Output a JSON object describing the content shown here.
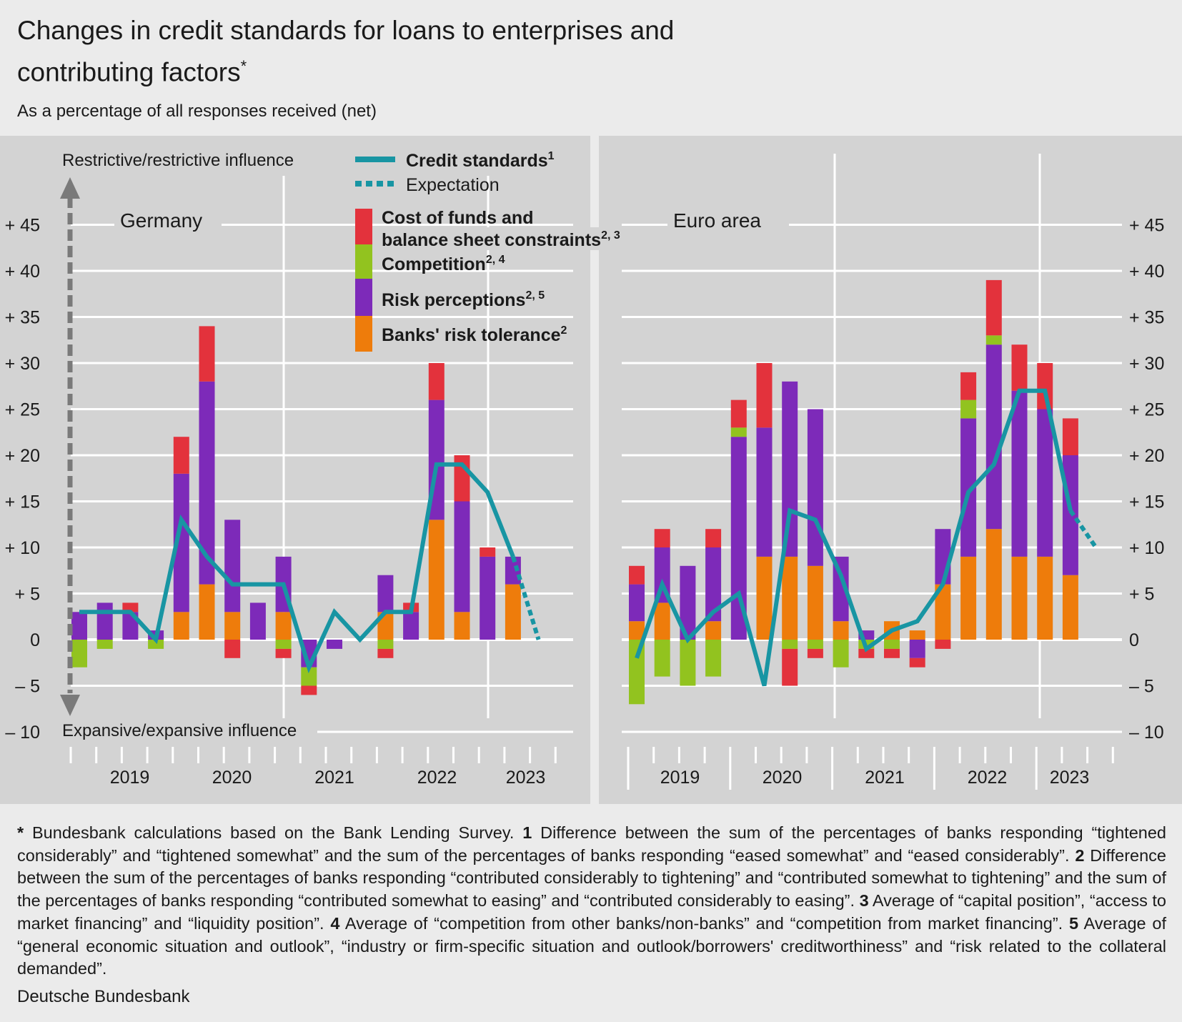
{
  "title": "Changes in credit standards for loans to enterprises and contributing factors",
  "title_mark": "*",
  "subtitle": "As a percentage of all responses received (net)",
  "axis_top_label": "Restrictive/restrictive influence",
  "axis_bottom_label": "Expansive/expansive influence",
  "legend": {
    "credit_standards": "Credit standards",
    "credit_standards_note": "1",
    "expectation": "Expectation",
    "cost_line1": "Cost of funds and",
    "cost_line2": "balance sheet constraints",
    "cost_note": "2, 3",
    "competition": "Competition",
    "competition_note": "2, 4",
    "risk_perceptions": "Risk perceptions",
    "risk_perceptions_note": "2, 5",
    "risk_tolerance": "Banks' risk tolerance",
    "risk_tolerance_note": "2"
  },
  "colors": {
    "line": "#1895a3",
    "cost": "#e3323c",
    "competition": "#92c31f",
    "risk_perceptions": "#7d2ab9",
    "risk_tolerance": "#ee7c0b",
    "background": "#ebebeb",
    "plot_background": "#d3d3d3"
  },
  "footnote": {
    "p0": " Bundesbank calculations based on the Bank Lending Survey. ",
    "n1": "1",
    "p1": " Difference between the sum of the percentages of banks responding “tightened considerably” and “tightened somewhat” and the sum of the percentages of banks responding “eased somewhat” and “eased considerably”. ",
    "n2": "2",
    "p2": " Difference between the sum of the percentages of banks responding “contributed considerably to tightening” and “contributed somewhat to tightening” and the sum of the percentages of banks responding “contributed somewhat to easing” and “contributed considerably to easing”. ",
    "n3": "3",
    "p3": " Average of “capital position”, “access to market financing” and “liquidity position”. ",
    "n4": "4",
    "p4": " Average of “competition from other banks/non-banks” and “competition from market financing”. ",
    "n5": "5",
    "p5": " Average of “general economic situation and outlook”, “industry or firm-specific situation and outlook/borrowers' creditworthiness” and “risk related to the collateral demanded”."
  },
  "source": "Deutsche Bundesbank",
  "chart_data": [
    {
      "type": "bar",
      "title": "Germany",
      "stacked": true,
      "ylim": [
        -10,
        48
      ],
      "yticks": [
        -10,
        -5,
        0,
        5,
        10,
        15,
        20,
        25,
        30,
        35,
        40,
        45
      ],
      "ytick_labels": [
        "– 10",
        "– 5",
        "0",
        "+ 5",
        "+ 10",
        "+ 15",
        "+ 20",
        "+ 25",
        "+ 30",
        "+ 35",
        "+ 40",
        "+ 45"
      ],
      "years": [
        "2019",
        "2020",
        "2021",
        "2022",
        "2023"
      ],
      "quarters": [
        "2019 Q1",
        "2019 Q2",
        "2019 Q3",
        "2019 Q4",
        "2020 Q1",
        "2020 Q2",
        "2020 Q3",
        "2020 Q4",
        "2021 Q1",
        "2021 Q2",
        "2021 Q3",
        "2021 Q4",
        "2022 Q1",
        "2022 Q2",
        "2022 Q3",
        "2022 Q4",
        "2023 Q1",
        "2023 Q2",
        "2023 Q3"
      ],
      "series": [
        {
          "name": "Banks' risk tolerance",
          "values": [
            0,
            0,
            0,
            0,
            3,
            6,
            3,
            0,
            3,
            0,
            0,
            0,
            3,
            0,
            13,
            3,
            0,
            6,
            0
          ]
        },
        {
          "name": "Risk perceptions",
          "values": [
            3,
            4,
            3,
            1,
            15,
            22,
            10,
            4,
            6,
            -3,
            -1,
            0,
            4,
            3,
            13,
            12,
            9,
            3,
            0
          ]
        },
        {
          "name": "Competition",
          "values": [
            -3,
            -1,
            0,
            -1,
            0,
            0,
            0,
            0,
            -1,
            -2,
            0,
            0,
            -1,
            0,
            0,
            0,
            0,
            0,
            0
          ]
        },
        {
          "name": "Cost of funds and balance sheet constraints",
          "values": [
            0,
            0,
            1,
            0,
            4,
            6,
            -2,
            0,
            -1,
            -1,
            0,
            0,
            -1,
            1,
            4,
            5,
            1,
            0,
            0
          ]
        }
      ],
      "credit_standards": [
        3,
        3,
        3,
        0,
        13,
        9,
        6,
        6,
        6,
        -3,
        3,
        0,
        3,
        3,
        19,
        19,
        16,
        9,
        null
      ],
      "expectation": [
        null,
        null,
        null,
        null,
        null,
        null,
        null,
        null,
        null,
        null,
        null,
        null,
        null,
        null,
        null,
        null,
        null,
        9,
        0
      ]
    },
    {
      "type": "bar",
      "title": "Euro area",
      "stacked": true,
      "ylim": [
        -10,
        48
      ],
      "yticks": [
        -10,
        -5,
        0,
        5,
        10,
        15,
        20,
        25,
        30,
        35,
        40,
        45
      ],
      "ytick_labels": [
        "– 10",
        "– 5",
        "0",
        "+ 5",
        "+ 10",
        "+ 15",
        "+ 20",
        "+ 25",
        "+ 30",
        "+ 35",
        "+ 40",
        "+ 45"
      ],
      "years": [
        "2019",
        "2020",
        "2021",
        "2022",
        "2023"
      ],
      "quarters": [
        "2019 Q1",
        "2019 Q2",
        "2019 Q3",
        "2019 Q4",
        "2020 Q1",
        "2020 Q2",
        "2020 Q3",
        "2020 Q4",
        "2021 Q1",
        "2021 Q2",
        "2021 Q3",
        "2021 Q4",
        "2022 Q1",
        "2022 Q2",
        "2022 Q3",
        "2022 Q4",
        "2023 Q1",
        "2023 Q2",
        "2023 Q3"
      ],
      "series": [
        {
          "name": "Banks' risk tolerance",
          "values": [
            2,
            4,
            0,
            2,
            0,
            9,
            9,
            8,
            2,
            0,
            2,
            1,
            6,
            9,
            12,
            9,
            9,
            7,
            0
          ]
        },
        {
          "name": "Risk perceptions",
          "values": [
            4,
            6,
            8,
            8,
            22,
            14,
            19,
            17,
            7,
            1,
            0,
            -2,
            6,
            15,
            20,
            18,
            16,
            13,
            0
          ]
        },
        {
          "name": "Competition",
          "values": [
            -7,
            -4,
            -5,
            -4,
            1,
            0,
            -1,
            -1,
            -3,
            -1,
            -1,
            0,
            0,
            2,
            1,
            0,
            0,
            0,
            0
          ]
        },
        {
          "name": "Cost of funds and balance sheet constraints",
          "values": [
            2,
            2,
            0,
            2,
            3,
            7,
            -4,
            -1,
            0,
            -1,
            -1,
            -1,
            -1,
            3,
            6,
            5,
            5,
            4,
            0
          ]
        }
      ],
      "credit_standards": [
        -2,
        6,
        0,
        3,
        5,
        -5,
        14,
        13,
        7,
        -1,
        1,
        2,
        6,
        16,
        19,
        27,
        27,
        14,
        null
      ],
      "expectation": [
        null,
        null,
        null,
        null,
        null,
        null,
        null,
        null,
        null,
        null,
        null,
        null,
        null,
        null,
        null,
        null,
        null,
        14,
        10
      ]
    }
  ]
}
